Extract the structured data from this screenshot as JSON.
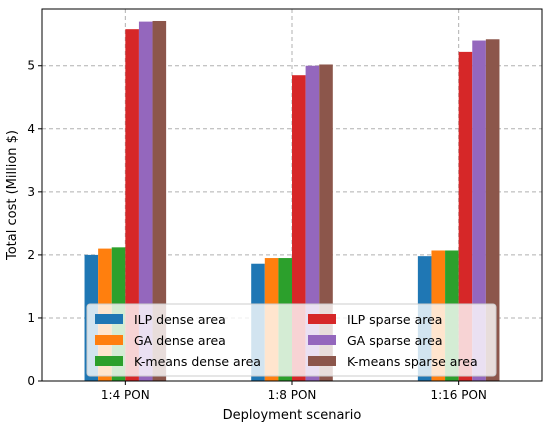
{
  "chart_data": {
    "type": "bar",
    "xlabel": "Deployment scenario",
    "ylabel": "Total cost (Million $)",
    "categories": [
      "1:4 PON",
      "1:8 PON",
      "1:16 PON"
    ],
    "yticks": [
      "0",
      "1",
      "2",
      "3",
      "4",
      "5"
    ],
    "ylim": [
      0,
      5.9
    ],
    "grid": true,
    "legend_position": "lower center, two columns",
    "series": [
      {
        "name": "ILP dense area",
        "color": "#1f77b4",
        "values": [
          2.0,
          1.86,
          1.98
        ]
      },
      {
        "name": "GA dense area",
        "color": "#ff7f0e",
        "values": [
          2.1,
          1.95,
          2.07
        ]
      },
      {
        "name": "K-means dense area",
        "color": "#2ca02c",
        "values": [
          2.12,
          1.95,
          2.07
        ]
      },
      {
        "name": "ILP sparse area",
        "color": "#d62728",
        "values": [
          5.58,
          4.85,
          5.22
        ]
      },
      {
        "name": "GA sparse area",
        "color": "#9467bd",
        "values": [
          5.7,
          5.0,
          5.4
        ]
      },
      {
        "name": "K-means sparse area",
        "color": "#8c564b",
        "values": [
          5.71,
          5.02,
          5.42
        ]
      }
    ]
  }
}
